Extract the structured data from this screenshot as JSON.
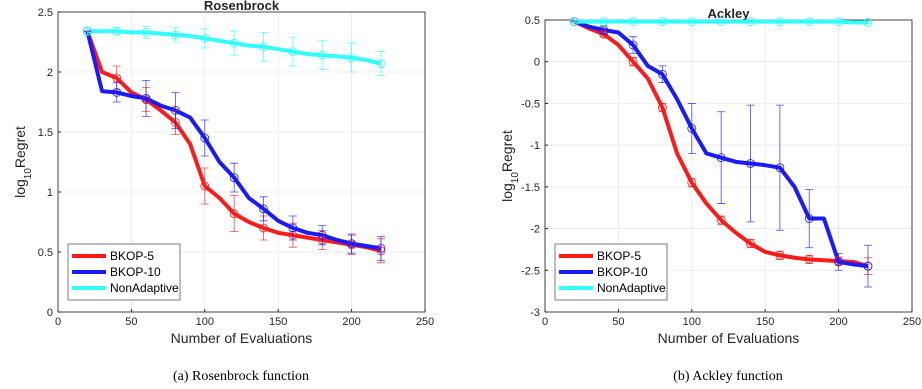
{
  "chart_data": [
    {
      "type": "line",
      "title": "Rosenbrock",
      "xlabel": "Number of Evaluations",
      "ylabel": [
        "log",
        "10",
        "Regret"
      ],
      "caption": "(a)  Rosenbrock function",
      "xlim": [
        0,
        250
      ],
      "xticks": [
        0,
        50,
        100,
        150,
        200,
        250
      ],
      "ylim": [
        0,
        2.5
      ],
      "yticks": [
        0,
        0.5,
        1,
        1.5,
        2,
        2.5
      ],
      "grid": true,
      "legend": "lower left",
      "x": [
        20,
        30,
        40,
        50,
        60,
        70,
        80,
        90,
        100,
        110,
        120,
        130,
        140,
        150,
        160,
        170,
        180,
        190,
        200,
        210,
        220
      ],
      "series": [
        {
          "name": "BKOP-5",
          "color": "#ff1a1a",
          "values": [
            2.34,
            2.0,
            1.95,
            1.83,
            1.77,
            1.68,
            1.58,
            1.4,
            1.05,
            0.95,
            0.82,
            0.75,
            0.7,
            0.66,
            0.64,
            0.62,
            0.6,
            0.58,
            0.56,
            0.54,
            0.51
          ],
          "errors": [
            0,
            null,
            0.1,
            null,
            0.1,
            null,
            0.1,
            null,
            0.15,
            null,
            0.15,
            null,
            0.1,
            null,
            0.1,
            null,
            0.08,
            null,
            0.08,
            null,
            0.1
          ]
        },
        {
          "name": "BKOP-10",
          "color": "#1a1aff",
          "values": [
            2.34,
            1.84,
            1.83,
            1.8,
            1.78,
            1.72,
            1.68,
            1.62,
            1.45,
            1.25,
            1.12,
            0.95,
            0.86,
            0.76,
            0.7,
            0.66,
            0.64,
            0.6,
            0.57,
            0.55,
            0.53
          ],
          "errors": [
            0,
            null,
            0.08,
            null,
            0.15,
            null,
            0.15,
            null,
            0.15,
            null,
            0.12,
            null,
            0.1,
            null,
            0.1,
            null,
            0.08,
            null,
            0.08,
            null,
            0.1
          ]
        },
        {
          "name": "NonAdaptive",
          "color": "#33ffff",
          "values": [
            2.34,
            2.34,
            2.34,
            2.33,
            2.33,
            2.32,
            2.31,
            2.3,
            2.28,
            2.26,
            2.24,
            2.22,
            2.21,
            2.19,
            2.17,
            2.15,
            2.14,
            2.13,
            2.12,
            2.1,
            2.07
          ],
          "errors": [
            0.03,
            null,
            0.03,
            null,
            0.05,
            null,
            0.06,
            null,
            0.08,
            null,
            0.1,
            null,
            0.12,
            null,
            0.12,
            null,
            0.12,
            null,
            0.12,
            null,
            0.1
          ]
        }
      ]
    },
    {
      "type": "line",
      "title": "Ackley",
      "xlabel": "Number of Evaluations",
      "ylabel": [
        "log",
        "10",
        "Regret"
      ],
      "caption": "(b)  Ackley function",
      "xlim": [
        0,
        250
      ],
      "xticks": [
        0,
        50,
        100,
        150,
        200,
        250
      ],
      "ylim": [
        -3,
        0.5
      ],
      "yticks": [
        -3,
        -2.5,
        -2,
        -1.5,
        -1,
        -0.5,
        0,
        0.5
      ],
      "grid": true,
      "legend": "lower left",
      "x": [
        20,
        30,
        40,
        50,
        60,
        70,
        80,
        90,
        100,
        110,
        120,
        130,
        140,
        150,
        160,
        170,
        180,
        190,
        200,
        210,
        220
      ],
      "series": [
        {
          "name": "BKOP-5",
          "color": "#ff1a1a",
          "values": [
            0.48,
            0.4,
            0.33,
            0.2,
            0.0,
            -0.2,
            -0.55,
            -1.1,
            -1.45,
            -1.7,
            -1.9,
            -2.05,
            -2.18,
            -2.28,
            -2.32,
            -2.35,
            -2.37,
            -2.38,
            -2.39,
            -2.4,
            -2.45
          ],
          "errors": [
            0,
            null,
            0.03,
            null,
            0.05,
            null,
            0.05,
            null,
            0.05,
            null,
            0.05,
            null,
            0.05,
            null,
            0.05,
            null,
            0.05,
            null,
            0.05,
            null,
            0.1
          ]
        },
        {
          "name": "BKOP-10",
          "color": "#1a1aff",
          "values": [
            0.48,
            0.42,
            0.38,
            0.35,
            0.2,
            -0.05,
            -0.15,
            -0.45,
            -0.8,
            -1.1,
            -1.15,
            -1.2,
            -1.22,
            -1.24,
            -1.27,
            -1.5,
            -1.88,
            -1.88,
            -2.4,
            -2.43,
            -2.45
          ],
          "errors": [
            0,
            null,
            0.05,
            null,
            0.1,
            null,
            0.1,
            null,
            0.3,
            null,
            0.55,
            null,
            0.7,
            null,
            0.75,
            null,
            0.35,
            null,
            0.1,
            null,
            0.25
          ]
        },
        {
          "name": "NonAdaptive",
          "color": "#33ffff",
          "values": [
            0.48,
            0.48,
            0.48,
            0.48,
            0.48,
            0.48,
            0.48,
            0.48,
            0.48,
            0.48,
            0.48,
            0.48,
            0.48,
            0.48,
            0.48,
            0.48,
            0.48,
            0.48,
            0.48,
            0.47,
            0.47
          ],
          "errors": [
            0.01,
            null,
            0.01,
            null,
            0.01,
            null,
            0.01,
            null,
            0.01,
            null,
            0.01,
            null,
            0.01,
            null,
            0.01,
            null,
            0.01,
            null,
            0.01,
            null,
            0.01
          ]
        }
      ]
    }
  ]
}
